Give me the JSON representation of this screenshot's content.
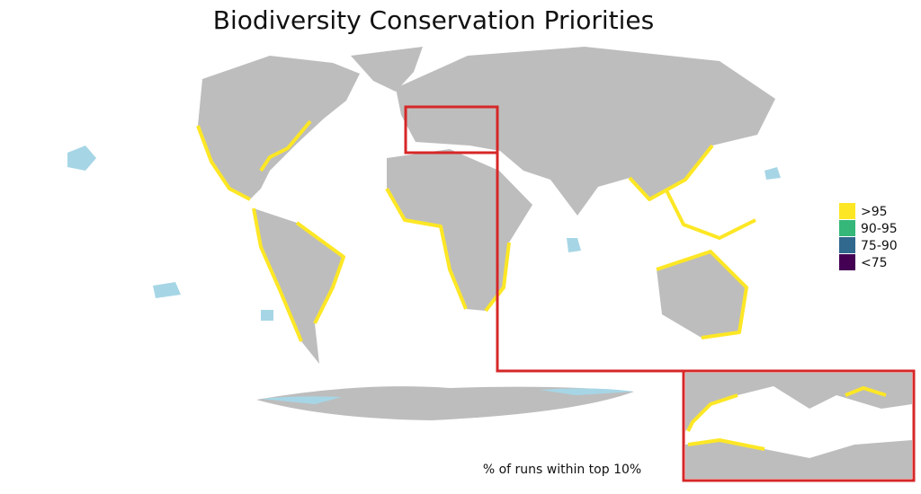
{
  "title": "Biodiversity Conservation Priorities",
  "legend": {
    "items": [
      {
        "label": ">95",
        "color": "#fde725"
      },
      {
        "label": "90-95",
        "color": "#35b779"
      },
      {
        "label": "75-90",
        "color": "#31688e"
      },
      {
        "label": "<75",
        "color": "#440154"
      }
    ]
  },
  "caption": "% of runs within top 10%"
}
